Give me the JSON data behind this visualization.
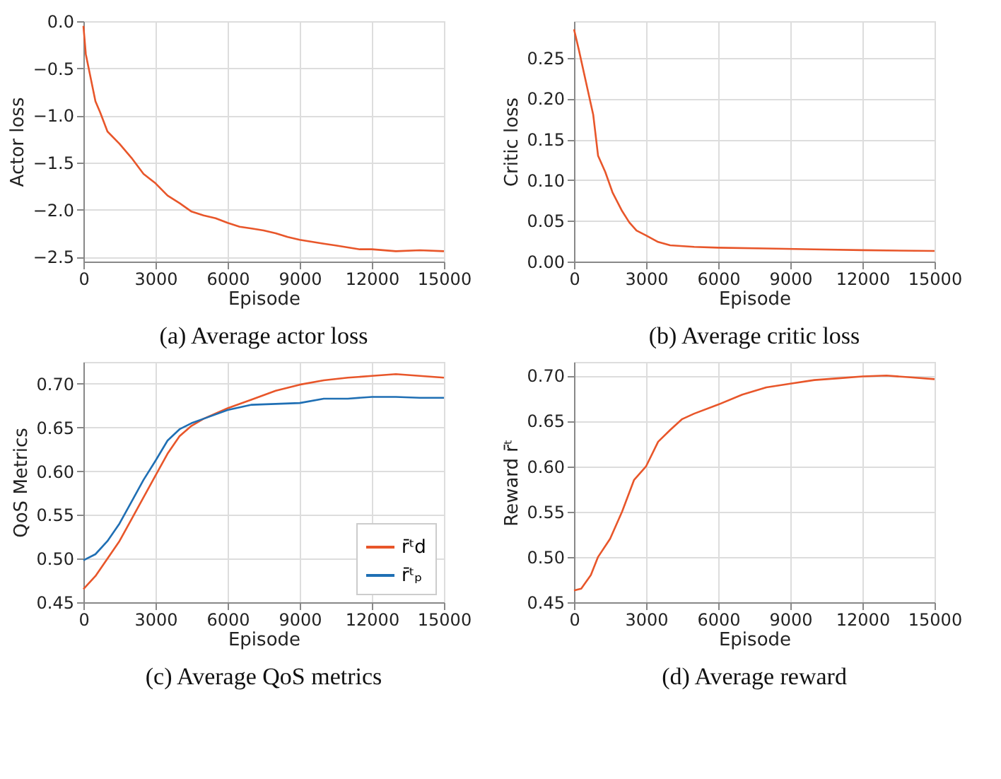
{
  "chart_data": [
    {
      "type": "line",
      "title": "(a) Average actor loss",
      "xlabel": "Episode",
      "ylabel": "Actor loss",
      "xlim": [
        0,
        15000
      ],
      "xticks": [
        0,
        3000,
        6000,
        9000,
        12000,
        15000
      ],
      "ylim": [
        -2.55,
        0.0
      ],
      "yticks": [
        {
          "value": -2.5,
          "label": "−2.5"
        },
        {
          "value": -2.0,
          "label": "−2.0"
        },
        {
          "value": -1.5,
          "label": "−1.5"
        },
        {
          "value": -1.0,
          "label": "−1.0"
        },
        {
          "value": -0.5,
          "label": "−0.5"
        },
        {
          "value": 0.0,
          "label": "0.0"
        }
      ],
      "grid": true,
      "x": [
        0,
        100,
        300,
        500,
        700,
        1000,
        1500,
        2000,
        2500,
        3000,
        3500,
        4000,
        4500,
        5000,
        5500,
        6000,
        6500,
        7000,
        7500,
        8000,
        8500,
        9000,
        9500,
        10000,
        10500,
        11000,
        11500,
        12000,
        13000,
        14000,
        15000
      ],
      "series": [
        {
          "color": "#e8562a",
          "values": [
            -0.05,
            -0.35,
            -0.6,
            -0.85,
            -0.97,
            -1.17,
            -1.3,
            -1.45,
            -1.62,
            -1.72,
            -1.85,
            -1.93,
            -2.02,
            -2.06,
            -2.09,
            -2.14,
            -2.18,
            -2.2,
            -2.22,
            -2.25,
            -2.29,
            -2.32,
            -2.34,
            -2.36,
            -2.38,
            -2.4,
            -2.42,
            -2.42,
            -2.44,
            -2.43,
            -2.44
          ]
        }
      ]
    },
    {
      "type": "line",
      "title": "(b) Average critic loss",
      "xlabel": "Episode",
      "ylabel": "Critic loss",
      "xlim": [
        0,
        15000
      ],
      "xticks": [
        0,
        3000,
        6000,
        9000,
        12000,
        15000
      ],
      "ylim": [
        0.0,
        0.295
      ],
      "yticks": [
        {
          "value": 0.0,
          "label": "0.00"
        },
        0.05,
        {
          "value": 0.1,
          "label": "0.10"
        },
        0.15,
        {
          "value": 0.2,
          "label": "0.20"
        },
        0.25
      ],
      "grid": true,
      "x": [
        0,
        200,
        500,
        800,
        1000,
        1300,
        1600,
        2000,
        2300,
        2600,
        3000,
        3500,
        4000,
        5000,
        6000,
        8000,
        10000,
        12000,
        15000
      ],
      "series": [
        {
          "color": "#e8562a",
          "values": [
            0.285,
            0.26,
            0.22,
            0.18,
            0.13,
            0.11,
            0.085,
            0.062,
            0.048,
            0.038,
            0.032,
            0.024,
            0.02,
            0.018,
            0.017,
            0.016,
            0.015,
            0.014,
            0.013
          ]
        }
      ]
    },
    {
      "type": "line",
      "title": "(c) Average QoS metrics",
      "xlabel": "Episode",
      "ylabel": "QoS Metrics",
      "xlim": [
        0,
        15000
      ],
      "xticks": [
        0,
        3000,
        6000,
        9000,
        12000,
        15000
      ],
      "ylim": [
        0.45,
        0.725
      ],
      "yticks": [
        0.45,
        {
          "value": 0.5,
          "label": "0.50"
        },
        0.55,
        {
          "value": 0.6,
          "label": "0.60"
        },
        0.65,
        {
          "value": 0.7,
          "label": "0.70"
        }
      ],
      "grid": true,
      "legend": "bottom right",
      "x": [
        0,
        500,
        1000,
        1500,
        2000,
        2500,
        3000,
        3500,
        4000,
        4500,
        5000,
        6000,
        7000,
        8000,
        9000,
        10000,
        11000,
        12000,
        13000,
        14000,
        15000
      ],
      "series": [
        {
          "name": "r̄ᵗd",
          "color": "#e8562a",
          "values": [
            0.465,
            0.48,
            0.5,
            0.52,
            0.545,
            0.57,
            0.595,
            0.62,
            0.64,
            0.652,
            0.66,
            0.672,
            0.682,
            0.692,
            0.699,
            0.704,
            0.707,
            0.709,
            0.711,
            0.709,
            0.707
          ]
        },
        {
          "name": "r̄ᵗₚ",
          "color": "#1f6fb4",
          "values": [
            0.498,
            0.505,
            0.52,
            0.54,
            0.565,
            0.59,
            0.612,
            0.635,
            0.648,
            0.655,
            0.66,
            0.67,
            0.676,
            0.677,
            0.678,
            0.683,
            0.683,
            0.685,
            0.685,
            0.684,
            0.684
          ]
        }
      ]
    },
    {
      "type": "line",
      "title": "(d) Average reward",
      "xlabel": "Episode",
      "ylabel": "Reward r̄ᵗ",
      "xlim": [
        0,
        15000
      ],
      "xticks": [
        0,
        3000,
        6000,
        9000,
        12000,
        15000
      ],
      "ylim": [
        0.45,
        0.715
      ],
      "yticks": [
        0.45,
        {
          "value": 0.5,
          "label": "0.50"
        },
        0.55,
        {
          "value": 0.6,
          "label": "0.60"
        },
        0.65,
        {
          "value": 0.7,
          "label": "0.70"
        }
      ],
      "grid": true,
      "x": [
        0,
        300,
        700,
        1000,
        1500,
        2000,
        2500,
        3000,
        3500,
        4000,
        4500,
        5000,
        6000,
        7000,
        8000,
        9000,
        10000,
        11000,
        12000,
        13000,
        14000,
        15000
      ],
      "series": [
        {
          "color": "#e8562a",
          "values": [
            0.463,
            0.465,
            0.48,
            0.5,
            0.52,
            0.55,
            0.585,
            0.6,
            0.627,
            0.64,
            0.652,
            0.658,
            0.668,
            0.679,
            0.687,
            0.691,
            0.695,
            0.697,
            0.699,
            0.7,
            0.698,
            0.696
          ]
        }
      ]
    }
  ]
}
